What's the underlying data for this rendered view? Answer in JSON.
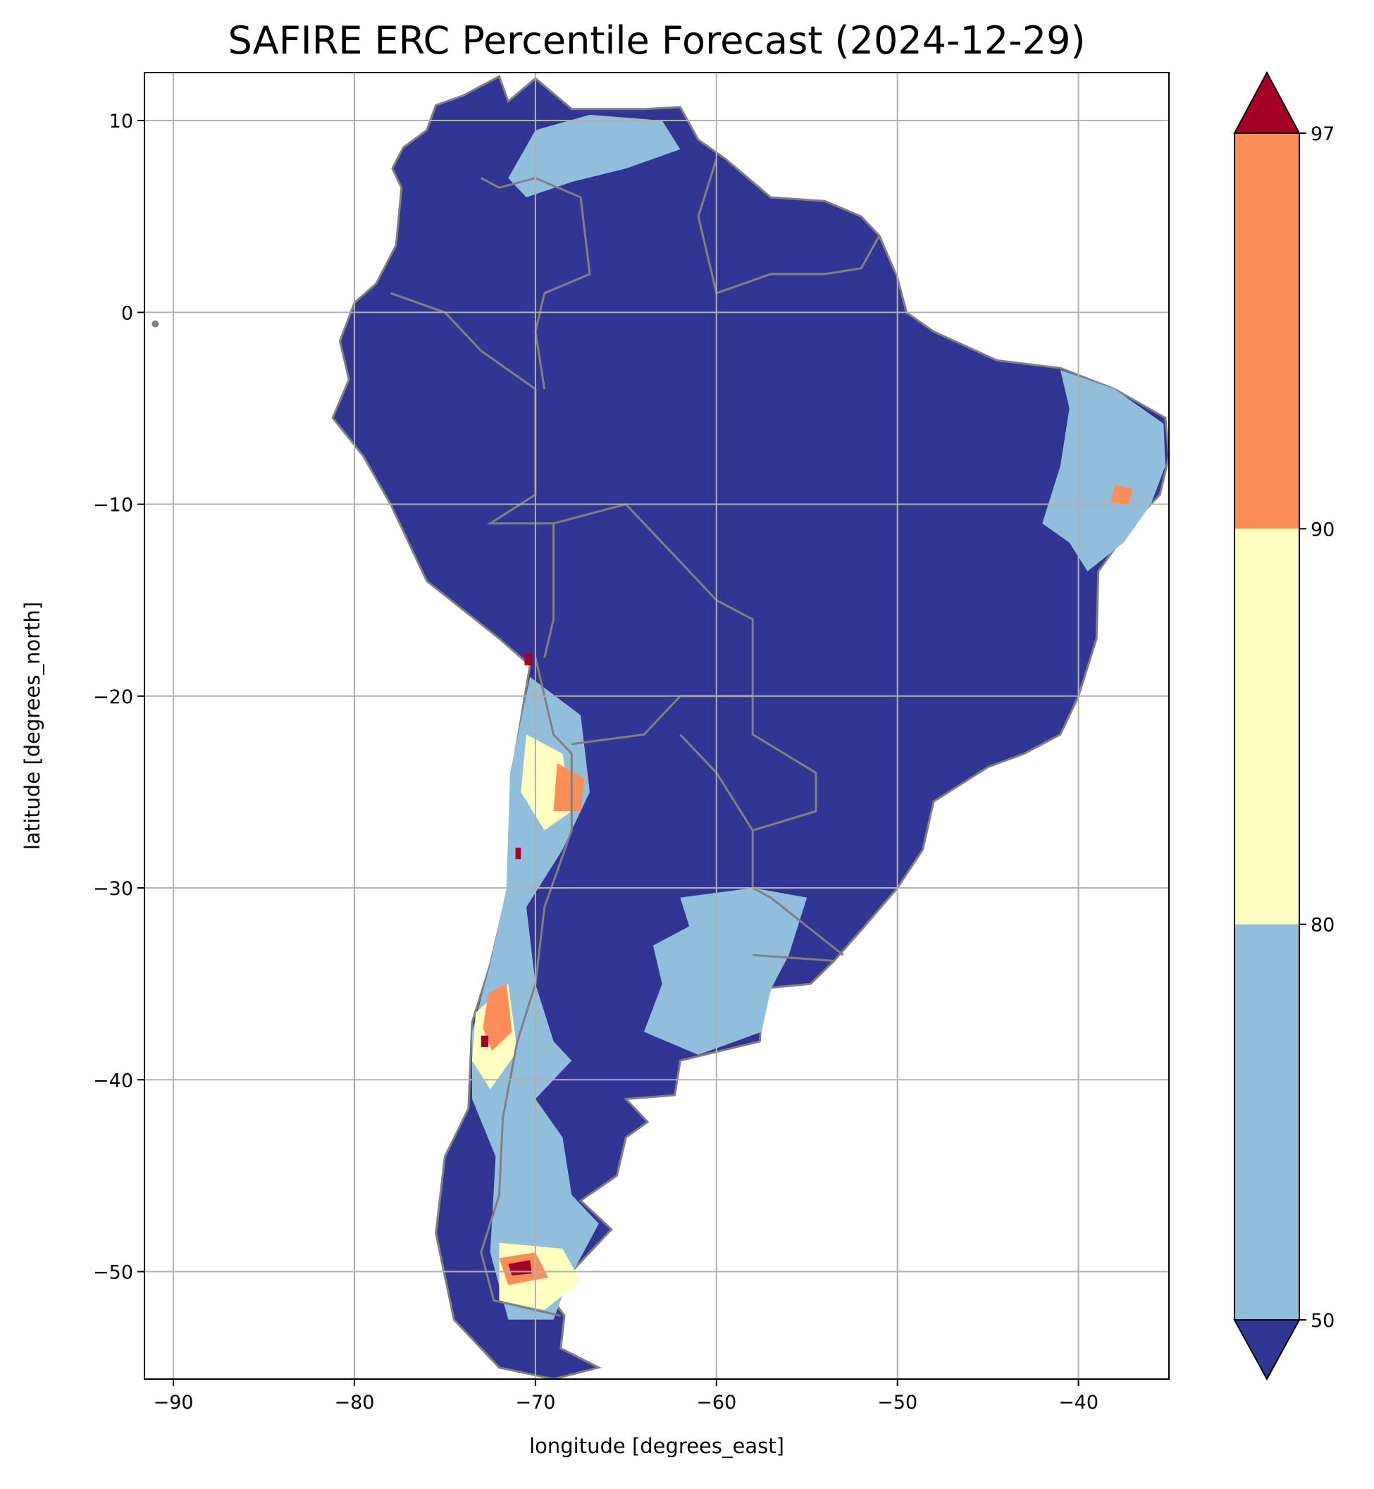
{
  "chart_data": {
    "type": "heatmap",
    "title": "SAFIRE ERC Percentile Forecast (2024-12-29)",
    "xlabel": "longitude [degrees_east]",
    "ylabel": "latitude [degrees_north]",
    "xlim": [
      -91.6,
      -35.0
    ],
    "ylim": [
      -55.6,
      12.5
    ],
    "xticks": [
      -90,
      -80,
      -70,
      -60,
      -50,
      -40
    ],
    "yticks": [
      10,
      0,
      -10,
      -20,
      -30,
      -40,
      -50
    ],
    "grid": true,
    "colorbar": {
      "levels": [
        50,
        80,
        90,
        97
      ],
      "extend": "both",
      "under_color": "#313695",
      "over_color": "#a50026",
      "band_colors": [
        "#91bfdb",
        "#ffffbf",
        "#fc8d59"
      ],
      "placement": "right"
    },
    "border_color": "#808080",
    "grid_color": "#b0b0b0",
    "description_regions": [
      {
        "region": "most of continent",
        "category": "below 50"
      },
      {
        "region": "northern Venezuela/Colombia plains",
        "category": "50-80"
      },
      {
        "region": "northeast Brazil",
        "category": "50-80 with 80-97 spots"
      },
      {
        "region": "Uruguay / Buenos Aires",
        "category": "50-80"
      },
      {
        "region": "Andes of Chile/Argentina",
        "category": "50-97 with spots above 97"
      },
      {
        "region": "southern Patagonia",
        "category": "50-97 with spots above 97"
      }
    ]
  }
}
